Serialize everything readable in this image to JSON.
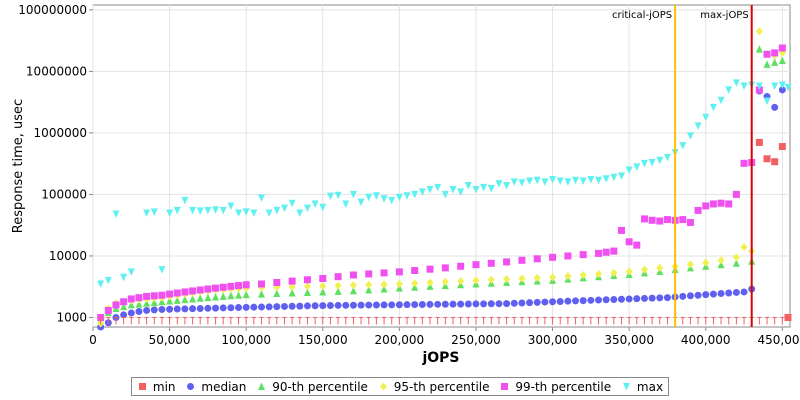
{
  "chart_data": {
    "type": "scatter",
    "title": "",
    "xlabel": "jOPS",
    "ylabel": "Response time, usec",
    "xlim": [
      0,
      455000
    ],
    "ylim": [
      700,
      120000000
    ],
    "y_scale": "log",
    "grid": true,
    "legend_position": "bottom",
    "x_ticks": [
      "0",
      "50,000",
      "100,000",
      "150,000",
      "200,000",
      "250,000",
      "300,000",
      "350,000",
      "400,000",
      "450,000"
    ],
    "y_ticks": [
      "1000",
      "10000",
      "100000",
      "1000000",
      "10000000",
      "100000000"
    ],
    "markers": [
      {
        "label": "critical-jOPS",
        "x": 380000,
        "color": "#FFC000"
      },
      {
        "label": "max-jOPS",
        "x": 430000,
        "color": "#DD0000"
      }
    ],
    "series": [
      {
        "name": "min",
        "color": "#F06060",
        "shape": "square",
        "x": [
          435000,
          440000,
          445000,
          450000,
          455000
        ],
        "y": [
          700000,
          380000,
          340000,
          600000,
          1000
        ]
      },
      {
        "name": "median",
        "color": "#6060F0",
        "shape": "circle",
        "x": [
          5000,
          10000,
          15000,
          20000,
          25000,
          30000,
          35000,
          40000,
          45000,
          50000,
          55000,
          60000,
          65000,
          70000,
          75000,
          80000,
          85000,
          90000,
          95000,
          100000,
          105000,
          110000,
          115000,
          120000,
          125000,
          130000,
          135000,
          140000,
          145000,
          150000,
          155000,
          160000,
          165000,
          170000,
          175000,
          180000,
          185000,
          190000,
          195000,
          200000,
          205000,
          210000,
          215000,
          220000,
          225000,
          230000,
          235000,
          240000,
          245000,
          250000,
          255000,
          260000,
          265000,
          270000,
          275000,
          280000,
          285000,
          290000,
          295000,
          300000,
          305000,
          310000,
          315000,
          320000,
          325000,
          330000,
          335000,
          340000,
          345000,
          350000,
          355000,
          360000,
          365000,
          370000,
          375000,
          380000,
          385000,
          390000,
          395000,
          400000,
          405000,
          410000,
          415000,
          420000,
          425000,
          430000,
          435000,
          440000,
          445000,
          450000
        ],
        "y": [
          700,
          820,
          1000,
          1100,
          1180,
          1250,
          1300,
          1330,
          1350,
          1360,
          1370,
          1380,
          1390,
          1400,
          1410,
          1420,
          1430,
          1440,
          1450,
          1460,
          1470,
          1480,
          1490,
          1500,
          1510,
          1520,
          1530,
          1540,
          1550,
          1560,
          1565,
          1570,
          1575,
          1580,
          1585,
          1590,
          1595,
          1600,
          1605,
          1610,
          1615,
          1620,
          1625,
          1630,
          1635,
          1640,
          1645,
          1650,
          1655,
          1660,
          1665,
          1670,
          1675,
          1680,
          1700,
          1720,
          1740,
          1760,
          1780,
          1800,
          1820,
          1840,
          1860,
          1880,
          1900,
          1920,
          1940,
          1960,
          1980,
          2000,
          2020,
          2040,
          2060,
          2080,
          2100,
          2150,
          2200,
          2250,
          2300,
          2350,
          2400,
          2450,
          2500,
          2550,
          2600,
          2900,
          4800000,
          3900000,
          2600000,
          5000000
        ]
      },
      {
        "name": "90-th percentile",
        "color": "#60E060",
        "shape": "triangle-up",
        "x": [
          5000,
          10000,
          15000,
          20000,
          25000,
          30000,
          35000,
          40000,
          45000,
          50000,
          55000,
          60000,
          65000,
          70000,
          75000,
          80000,
          85000,
          90000,
          95000,
          100000,
          110000,
          120000,
          130000,
          140000,
          150000,
          160000,
          170000,
          180000,
          190000,
          200000,
          210000,
          220000,
          230000,
          240000,
          250000,
          260000,
          270000,
          280000,
          290000,
          300000,
          310000,
          320000,
          330000,
          340000,
          350000,
          360000,
          370000,
          380000,
          390000,
          400000,
          410000,
          420000,
          430000,
          435000,
          440000,
          445000,
          450000
        ],
        "y": [
          900,
          1200,
          1400,
          1500,
          1600,
          1650,
          1700,
          1750,
          1800,
          1850,
          1900,
          1950,
          2000,
          2050,
          2100,
          2150,
          2200,
          2250,
          2300,
          2350,
          2400,
          2450,
          2500,
          2550,
          2600,
          2650,
          2700,
          2800,
          2900,
          3000,
          3100,
          3200,
          3300,
          3400,
          3500,
          3600,
          3700,
          3800,
          3900,
          4000,
          4200,
          4400,
          4600,
          4800,
          5000,
          5300,
          5600,
          6000,
          6400,
          6800,
          7200,
          7600,
          8200,
          23000000,
          13000000,
          14000000,
          15000000
        ]
      },
      {
        "name": "95-th percentile",
        "color": "#F0F050",
        "shape": "diamond",
        "x": [
          5000,
          10000,
          15000,
          20000,
          25000,
          30000,
          35000,
          40000,
          45000,
          50000,
          55000,
          60000,
          65000,
          70000,
          75000,
          80000,
          85000,
          90000,
          95000,
          100000,
          110000,
          120000,
          130000,
          140000,
          150000,
          160000,
          170000,
          180000,
          190000,
          200000,
          210000,
          220000,
          230000,
          240000,
          250000,
          260000,
          270000,
          280000,
          290000,
          300000,
          310000,
          320000,
          330000,
          340000,
          350000,
          360000,
          370000,
          380000,
          390000,
          400000,
          410000,
          420000,
          425000,
          430000,
          435000,
          440000,
          445000,
          450000
        ],
        "y": [
          800,
          1400,
          1700,
          1800,
          1900,
          1950,
          2000,
          2050,
          2100,
          2200,
          2300,
          2400,
          2500,
          2600,
          2700,
          2800,
          2850,
          2900,
          2950,
          3000,
          3050,
          3100,
          3150,
          3200,
          3250,
          3300,
          3350,
          3400,
          3450,
          3500,
          3600,
          3700,
          3800,
          3900,
          4000,
          4100,
          4200,
          4300,
          4400,
          4500,
          4700,
          4900,
          5100,
          5300,
          5600,
          6000,
          6400,
          6800,
          7300,
          7800,
          8500,
          9500,
          14000,
          12000,
          45000000,
          19000000,
          18000000,
          20000000
        ]
      },
      {
        "name": "99-th percentile",
        "color": "#F050F0",
        "shape": "square",
        "x": [
          5000,
          10000,
          15000,
          20000,
          25000,
          30000,
          35000,
          40000,
          45000,
          50000,
          55000,
          60000,
          65000,
          70000,
          75000,
          80000,
          85000,
          90000,
          95000,
          100000,
          110000,
          120000,
          130000,
          140000,
          150000,
          160000,
          170000,
          180000,
          190000,
          200000,
          210000,
          220000,
          230000,
          240000,
          250000,
          260000,
          270000,
          280000,
          290000,
          300000,
          310000,
          320000,
          330000,
          335000,
          340000,
          345000,
          350000,
          355000,
          360000,
          365000,
          370000,
          375000,
          380000,
          385000,
          390000,
          395000,
          400000,
          405000,
          410000,
          415000,
          420000,
          425000,
          430000,
          435000,
          440000,
          445000,
          450000
        ],
        "y": [
          1000,
          1300,
          1600,
          1800,
          2000,
          2100,
          2200,
          2250,
          2300,
          2400,
          2500,
          2600,
          2700,
          2800,
          2900,
          3000,
          3100,
          3200,
          3300,
          3400,
          3500,
          3700,
          3900,
          4100,
          4300,
          4600,
          4900,
          5100,
          5300,
          5500,
          5800,
          6100,
          6400,
          6800,
          7200,
          7600,
          8000,
          8500,
          9000,
          9500,
          10000,
          10500,
          11000,
          11500,
          12000,
          26000,
          17000,
          15000,
          40000,
          38000,
          37000,
          39000,
          38000,
          39000,
          35000,
          55000,
          65000,
          70000,
          72000,
          70000,
          100000,
          320000,
          330000,
          5000000,
          19000000,
          20000000,
          24000000
        ]
      },
      {
        "name": "max",
        "color": "#60F0F0",
        "shape": "triangle-down",
        "x": [
          5000,
          10000,
          15000,
          20000,
          25000,
          35000,
          40000,
          45000,
          50000,
          55000,
          60000,
          65000,
          70000,
          75000,
          80000,
          85000,
          90000,
          95000,
          100000,
          105000,
          110000,
          115000,
          120000,
          125000,
          130000,
          135000,
          140000,
          145000,
          150000,
          155000,
          160000,
          165000,
          170000,
          175000,
          180000,
          185000,
          190000,
          195000,
          200000,
          205000,
          210000,
          215000,
          220000,
          225000,
          230000,
          235000,
          240000,
          245000,
          250000,
          255000,
          260000,
          265000,
          270000,
          275000,
          280000,
          285000,
          290000,
          295000,
          300000,
          305000,
          310000,
          315000,
          320000,
          325000,
          330000,
          335000,
          340000,
          345000,
          350000,
          355000,
          360000,
          365000,
          370000,
          375000,
          380000,
          385000,
          390000,
          395000,
          400000,
          405000,
          410000,
          415000,
          420000,
          425000,
          430000,
          435000,
          440000,
          445000,
          450000,
          455000
        ],
        "y": [
          3500,
          4000,
          48000,
          4500,
          5500,
          50000,
          52000,
          6000,
          50000,
          55000,
          80000,
          55000,
          54000,
          55000,
          56000,
          55000,
          65000,
          50000,
          52000,
          50000,
          88000,
          50000,
          55000,
          60000,
          72000,
          50000,
          60000,
          70000,
          62000,
          94000,
          97000,
          70000,
          100000,
          75000,
          90000,
          95000,
          85000,
          80000,
          90000,
          95000,
          100000,
          110000,
          120000,
          130000,
          100000,
          120000,
          110000,
          140000,
          120000,
          130000,
          125000,
          150000,
          140000,
          160000,
          155000,
          165000,
          170000,
          160000,
          175000,
          165000,
          160000,
          170000,
          165000,
          175000,
          170000,
          180000,
          190000,
          200000,
          250000,
          280000,
          320000,
          330000,
          360000,
          400000,
          480000,
          620000,
          900000,
          1300000,
          1800000,
          2600000,
          3400000,
          5000000,
          6500000,
          5800000,
          6000000,
          5800000,
          3300000,
          5800000,
          6000000,
          5500000
        ]
      }
    ]
  },
  "legend": {
    "items": [
      {
        "label": "min",
        "color": "#F06060"
      },
      {
        "label": "median",
        "color": "#6060F0"
      },
      {
        "label": "90-th percentile",
        "color": "#60E060"
      },
      {
        "label": "95-th percentile",
        "color": "#F0F050"
      },
      {
        "label": "99-th percentile",
        "color": "#F050F0"
      },
      {
        "label": "max",
        "color": "#60F0F0"
      }
    ]
  }
}
